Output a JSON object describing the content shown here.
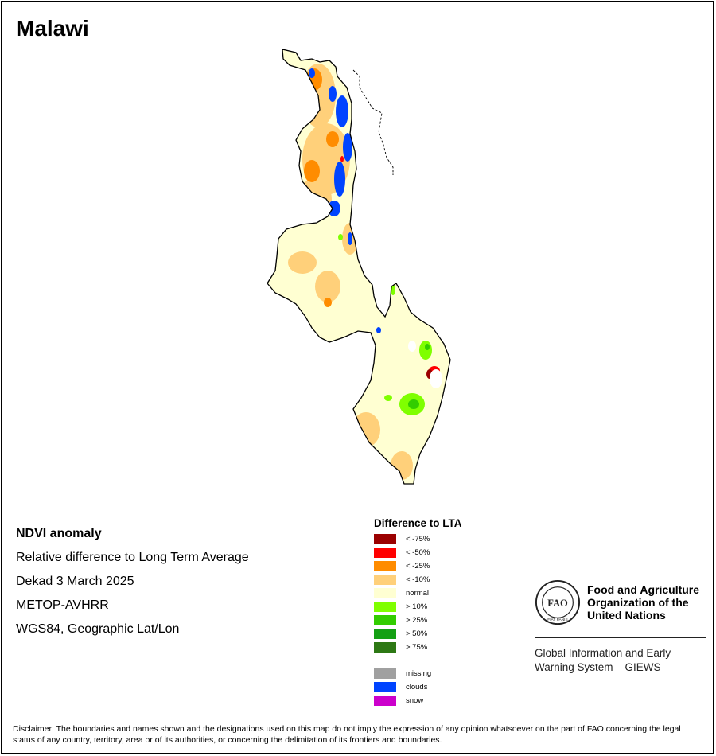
{
  "title": "Malawi",
  "info": {
    "product": "NDVI anomaly",
    "description": "Relative difference to Long Term Average",
    "period": "Dekad 3 March 2025",
    "sensor": "METOP-AVHRR",
    "projection": "WGS84, Geographic Lat/Lon"
  },
  "legend": {
    "title": "Difference to LTA",
    "classes": [
      {
        "label": "< -75%",
        "color": "#9b0000"
      },
      {
        "label": "< -50%",
        "color": "#ff0000"
      },
      {
        "label": "< -25%",
        "color": "#ff8c00"
      },
      {
        "label": "< -10%",
        "color": "#ffd07a"
      },
      {
        "label": "normal",
        "color": "#ffffd2"
      },
      {
        "label": "> 10%",
        "color": "#7fff00"
      },
      {
        "label": "> 25%",
        "color": "#32cd00"
      },
      {
        "label": "> 50%",
        "color": "#14a014"
      },
      {
        "label": "> 75%",
        "color": "#2d7814"
      }
    ],
    "other": [
      {
        "label": "missing",
        "color": "#a0a0a0"
      },
      {
        "label": "clouds",
        "color": "#0044ff"
      },
      {
        "label": "snow",
        "color": "#cc00cc"
      }
    ]
  },
  "org": {
    "name_line1": "Food and Agriculture",
    "name_line2": "Organization of the",
    "name_line3": "United Nations",
    "system_line1": "Global Information and Early",
    "system_line2": "Warning System – GIEWS",
    "logo_text": "FAO",
    "logo_motto": "FIAT PANIS"
  },
  "disclaimer": "Disclaimer: The boundaries and names shown and the designations used on this map do not imply the expression of any opinion whatsoever on the part of FAO concerning the legal status of any country, territory, area or of its authorities, or concerning the delimitation of its frontiers and boundaries."
}
